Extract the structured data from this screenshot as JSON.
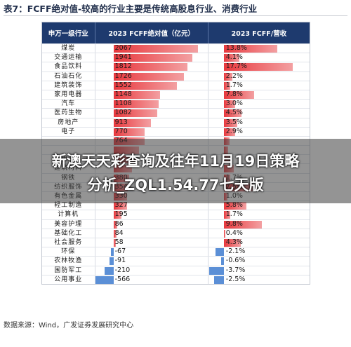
{
  "title": "表7：FCFF绝对值-较高的行业主要是传统高股息行业、消费行业",
  "headers": [
    "申万一级行业",
    "2023 FCFF绝对值（亿元）",
    "2023 FCFF/营收"
  ],
  "fcff_max": 2067,
  "ratio_max": 17.7,
  "rows": [
    {
      "industry": "煤炭",
      "fcff": "2067",
      "fcff_v": 2067,
      "ratio": "13.8%",
      "ratio_v": 13.8
    },
    {
      "industry": "交通运输",
      "fcff": "1941",
      "fcff_v": 1941,
      "ratio": "4.1%",
      "ratio_v": 4.1
    },
    {
      "industry": "食品饮料",
      "fcff": "1812",
      "fcff_v": 1812,
      "ratio": "17.7%",
      "ratio_v": 17.7
    },
    {
      "industry": "石油石化",
      "fcff": "1726",
      "fcff_v": 1726,
      "ratio": "2.2%",
      "ratio_v": 2.2
    },
    {
      "industry": "建筑装饰",
      "fcff": "1552",
      "fcff_v": 1552,
      "ratio": "1.7%",
      "ratio_v": 1.7
    },
    {
      "industry": "家用电器",
      "fcff": "1148",
      "fcff_v": 1148,
      "ratio": "7.8%",
      "ratio_v": 7.8
    },
    {
      "industry": "汽车",
      "fcff": "1108",
      "fcff_v": 1108,
      "ratio": "3.0%",
      "ratio_v": 3.0
    },
    {
      "industry": "医药生物",
      "fcff": "1082",
      "fcff_v": 1082,
      "ratio": "4.5%",
      "ratio_v": 4.5
    },
    {
      "industry": "房地产",
      "fcff": "913",
      "fcff_v": 913,
      "ratio": "3.5%",
      "ratio_v": 3.5
    },
    {
      "industry": "电子",
      "fcff": "770",
      "fcff_v": 770,
      "ratio": "2.9%",
      "ratio_v": 2.9
    },
    {
      "industry": "",
      "fcff": "764",
      "fcff_v": 764,
      "ratio": "",
      "ratio_v": 1.5
    },
    {
      "industry": "",
      "fcff": "",
      "fcff_v": 620,
      "ratio": "",
      "ratio_v": 1.2
    },
    {
      "industry": "电力",
      "fcff": "",
      "fcff_v": 560,
      "ratio": "",
      "ratio_v": 1.8
    },
    {
      "industry": "建筑材料",
      "fcff": "",
      "fcff_v": 450,
      "ratio": "",
      "ratio_v": 2.6
    },
    {
      "industry": "钢铁",
      "fcff": "380",
      "fcff_v": 380,
      "ratio": "1.7%",
      "ratio_v": 1.7
    },
    {
      "industry": "纺织服饰",
      "fcff": "354",
      "fcff_v": 354,
      "ratio": "7.5%",
      "ratio_v": 7.5
    },
    {
      "industry": "有色金属",
      "fcff": "330",
      "fcff_v": 330,
      "ratio": "1.0%",
      "ratio_v": 1.0
    },
    {
      "industry": "轻工制造",
      "fcff": "327",
      "fcff_v": 327,
      "ratio": "5.8%",
      "ratio_v": 5.8
    },
    {
      "industry": "计算机",
      "fcff": "195",
      "fcff_v": 195,
      "ratio": "1.7%",
      "ratio_v": 1.7
    },
    {
      "industry": "美容护理",
      "fcff": "86",
      "fcff_v": 86,
      "ratio": "9.8%",
      "ratio_v": 9.8
    },
    {
      "industry": "基础化工",
      "fcff": "84",
      "fcff_v": 84,
      "ratio": "0.4%",
      "ratio_v": 0.4
    },
    {
      "industry": "社会服务",
      "fcff": "58",
      "fcff_v": 58,
      "ratio": "4.3%",
      "ratio_v": 4.3
    },
    {
      "industry": "环保",
      "fcff": "-67",
      "fcff_v": -67,
      "ratio": "-2.1%",
      "ratio_v": -2.1
    },
    {
      "industry": "农林牧渔",
      "fcff": "-91",
      "fcff_v": -91,
      "ratio": "-0.6%",
      "ratio_v": -0.6
    },
    {
      "industry": "国防军工",
      "fcff": "-210",
      "fcff_v": -210,
      "ratio": "-3.7%",
      "ratio_v": -3.7
    },
    {
      "industry": "公用事业",
      "fcff": "-566",
      "fcff_v": -566,
      "ratio": "-2.5%",
      "ratio_v": -2.5
    }
  ],
  "source": "数据来源：Wind，广发证券发展研究中心",
  "overlay": {
    "line1": "新澳天天彩查询及往年11月19日策略",
    "line2": "分析_ZQL1.54.77七天版"
  },
  "colors": {
    "header_bg": "#1e3a6e",
    "positive_bar": "#e8383d",
    "negative_bar": "#5b8fd6"
  }
}
